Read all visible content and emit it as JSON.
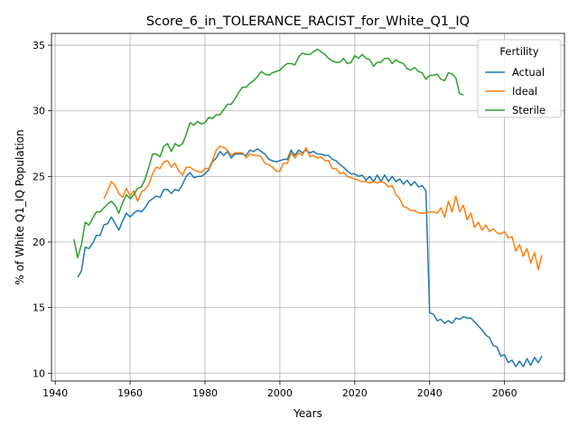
{
  "chart_data": {
    "type": "line",
    "title": "Score_6_in_TOLERANCE_RACIST_for_White_Q1_IQ",
    "xlabel": "Years",
    "ylabel": "% of White Q1_IQ Population",
    "xlim": [
      1939,
      2076
    ],
    "ylim": [
      9.4,
      35.9
    ],
    "xticks": [
      1940,
      1960,
      1980,
      2000,
      2020,
      2040,
      2060
    ],
    "yticks": [
      10,
      15,
      20,
      25,
      30,
      35
    ],
    "grid": true,
    "legend": {
      "title": "Fertility",
      "placement": "top-right"
    },
    "series": [
      {
        "name": "Actual",
        "color": "#1f77b4",
        "x": [
          1946,
          1947,
          1948,
          1949,
          1950,
          1951,
          1952,
          1953,
          1954,
          1955,
          1956,
          1957,
          1958,
          1959,
          1960,
          1961,
          1962,
          1963,
          1964,
          1965,
          1966,
          1967,
          1968,
          1969,
          1970,
          1971,
          1972,
          1973,
          1974,
          1975,
          1976,
          1977,
          1978,
          1979,
          1980,
          1981,
          1982,
          1983,
          1984,
          1985,
          1986,
          1987,
          1988,
          1989,
          1990,
          1991,
          1992,
          1993,
          1994,
          1995,
          1996,
          1997,
          1998,
          1999,
          2000,
          2001,
          2002,
          2003,
          2004,
          2005,
          2006,
          2007,
          2008,
          2009,
          2010,
          2011,
          2012,
          2013,
          2014,
          2015,
          2016,
          2017,
          2018,
          2019,
          2020,
          2021,
          2022,
          2023,
          2024,
          2025,
          2026,
          2027,
          2028,
          2029,
          2030,
          2031,
          2032,
          2033,
          2034,
          2035,
          2036,
          2037,
          2038,
          2039,
          2040,
          2041,
          2042,
          2043,
          2044,
          2045,
          2046,
          2047,
          2048,
          2049,
          2050,
          2051,
          2052,
          2053,
          2054,
          2055,
          2056,
          2057,
          2058,
          2059,
          2060,
          2061,
          2062,
          2063,
          2064,
          2065,
          2066,
          2067,
          2068,
          2069,
          2070
        ],
        "values": [
          17.3,
          17.8,
          19.6,
          19.5,
          19.9,
          20.5,
          20.5,
          21.3,
          21.4,
          21.9,
          21.4,
          20.9,
          21.6,
          22.2,
          21.9,
          22.2,
          22.4,
          22.3,
          22.6,
          23.1,
          23.3,
          23.5,
          23.4,
          24.0,
          24.0,
          23.7,
          24.0,
          23.9,
          24.4,
          25.0,
          25.3,
          24.9,
          25.0,
          25.0,
          25.2,
          25.5,
          26.1,
          26.4,
          26.9,
          26.6,
          26.9,
          26.4,
          26.7,
          26.7,
          26.7,
          26.6,
          27.0,
          26.9,
          27.1,
          26.9,
          26.7,
          26.3,
          26.2,
          26.1,
          26.2,
          26.3,
          26.3,
          27.0,
          26.6,
          27.0,
          26.8,
          27.0,
          26.8,
          26.9,
          26.7,
          26.7,
          26.6,
          26.6,
          26.3,
          26.2,
          25.9,
          25.7,
          25.4,
          25.2,
          25.2,
          25.0,
          25.1,
          24.7,
          25.0,
          24.6,
          25.1,
          24.6,
          25.1,
          24.6,
          25.0,
          24.6,
          24.8,
          24.4,
          24.7,
          24.3,
          24.6,
          24.2,
          24.3,
          23.9,
          14.6,
          14.5,
          14.0,
          14.1,
          13.8,
          14.0,
          13.8,
          14.2,
          14.1,
          14.3,
          14.2,
          14.2,
          13.9,
          13.6,
          13.3,
          12.9,
          12.7,
          12.1,
          12.0,
          11.3,
          11.4,
          10.8,
          11.0,
          10.5,
          10.9,
          10.5,
          11.1,
          10.6,
          11.2,
          10.8,
          11.3
        ]
      },
      {
        "name": "Ideal",
        "color": "#ff7f0e",
        "x": [
          1953,
          1954,
          1955,
          1956,
          1957,
          1958,
          1959,
          1960,
          1961,
          1962,
          1963,
          1964,
          1965,
          1966,
          1967,
          1968,
          1969,
          1970,
          1971,
          1972,
          1973,
          1974,
          1975,
          1976,
          1977,
          1978,
          1979,
          1980,
          1981,
          1982,
          1983,
          1984,
          1985,
          1986,
          1987,
          1988,
          1989,
          1990,
          1991,
          1992,
          1993,
          1994,
          1995,
          1996,
          1997,
          1998,
          1999,
          2000,
          2001,
          2002,
          2003,
          2004,
          2005,
          2006,
          2007,
          2008,
          2009,
          2010,
          2011,
          2012,
          2013,
          2014,
          2015,
          2016,
          2017,
          2018,
          2019,
          2020,
          2021,
          2022,
          2023,
          2024,
          2025,
          2026,
          2027,
          2028,
          2029,
          2030,
          2031,
          2032,
          2033,
          2034,
          2035,
          2036,
          2037,
          2038,
          2039,
          2040,
          2041,
          2042,
          2043,
          2044,
          2045,
          2046,
          2047,
          2048,
          2049,
          2050,
          2051,
          2052,
          2053,
          2054,
          2055,
          2056,
          2057,
          2058,
          2059,
          2060,
          2061,
          2062,
          2063,
          2064,
          2065,
          2066,
          2067,
          2068,
          2069,
          2070
        ],
        "values": [
          23.3,
          23.9,
          24.6,
          24.3,
          23.7,
          23.4,
          24.1,
          23.5,
          23.9,
          23.1,
          23.8,
          24.0,
          24.4,
          25.2,
          25.7,
          25.6,
          26.1,
          26.2,
          25.7,
          26.0,
          25.4,
          25.1,
          25.7,
          25.7,
          25.5,
          25.4,
          25.3,
          25.6,
          25.6,
          26.2,
          27.0,
          27.3,
          27.2,
          27.0,
          26.6,
          26.8,
          26.8,
          26.8,
          26.4,
          26.7,
          26.6,
          26.6,
          26.5,
          26.0,
          25.9,
          25.7,
          25.4,
          25.4,
          26.0,
          26.0,
          26.8,
          26.4,
          26.8,
          26.6,
          27.2,
          26.5,
          26.6,
          26.4,
          26.5,
          26.2,
          26.2,
          25.6,
          25.6,
          25.2,
          25.3,
          25.0,
          24.9,
          24.8,
          24.7,
          24.6,
          24.6,
          24.5,
          24.6,
          24.5,
          24.6,
          24.5,
          24.2,
          24.3,
          23.6,
          23.3,
          22.7,
          22.6,
          22.4,
          22.4,
          22.2,
          22.2,
          22.2,
          22.3,
          22.3,
          22.2,
          22.6,
          21.9,
          23.1,
          22.3,
          23.5,
          22.3,
          22.8,
          21.7,
          22.2,
          21.1,
          21.5,
          20.9,
          21.3,
          20.8,
          21.0,
          20.7,
          20.6,
          20.8,
          20.3,
          20.4,
          19.3,
          19.8,
          18.9,
          19.5,
          18.4,
          19.2,
          17.9,
          19.0
        ]
      },
      {
        "name": "Sterile",
        "color": "#2ca02c",
        "x": [
          1945,
          1946,
          1947,
          1948,
          1949,
          1950,
          1951,
          1952,
          1953,
          1954,
          1955,
          1956,
          1957,
          1958,
          1959,
          1960,
          1961,
          1962,
          1963,
          1964,
          1965,
          1966,
          1967,
          1968,
          1969,
          1970,
          1971,
          1972,
          1973,
          1974,
          1975,
          1976,
          1977,
          1978,
          1979,
          1980,
          1981,
          1982,
          1983,
          1984,
          1985,
          1986,
          1987,
          1988,
          1989,
          1990,
          1991,
          1992,
          1993,
          1994,
          1995,
          1996,
          1997,
          1998,
          1999,
          2000,
          2001,
          2002,
          2003,
          2004,
          2005,
          2006,
          2007,
          2008,
          2009,
          2010,
          2011,
          2012,
          2013,
          2014,
          2015,
          2016,
          2017,
          2018,
          2019,
          2020,
          2021,
          2022,
          2023,
          2024,
          2025,
          2026,
          2027,
          2028,
          2029,
          2030,
          2031,
          2032,
          2033,
          2034,
          2035,
          2036,
          2037,
          2038,
          2039,
          2040,
          2041,
          2042,
          2043,
          2044,
          2045,
          2046,
          2047,
          2048,
          2049
        ],
        "values": [
          20.2,
          18.8,
          19.8,
          21.5,
          21.3,
          21.8,
          22.3,
          22.3,
          22.6,
          22.9,
          23.1,
          22.8,
          22.2,
          23.0,
          23.6,
          23.3,
          23.6,
          24.1,
          24.2,
          24.8,
          25.7,
          26.7,
          26.7,
          26.5,
          27.3,
          27.5,
          26.9,
          27.5,
          27.3,
          27.5,
          28.2,
          29.1,
          28.9,
          29.2,
          29.0,
          29.1,
          29.5,
          29.4,
          29.7,
          29.7,
          30.1,
          30.5,
          30.5,
          30.9,
          31.4,
          31.8,
          31.8,
          32.1,
          32.3,
          32.6,
          33.0,
          32.8,
          32.7,
          32.9,
          33.0,
          33.1,
          33.4,
          33.6,
          33.6,
          33.5,
          34.1,
          34.4,
          34.3,
          34.3,
          34.5,
          34.7,
          34.5,
          34.3,
          34.0,
          33.8,
          33.7,
          33.7,
          34.0,
          33.6,
          33.7,
          34.2,
          34.0,
          34.3,
          34.0,
          33.9,
          33.4,
          33.7,
          33.7,
          34.0,
          34.0,
          33.6,
          33.9,
          33.7,
          33.6,
          33.2,
          33.1,
          33.3,
          33.0,
          32.9,
          32.4,
          32.7,
          32.7,
          32.8,
          32.4,
          32.3,
          32.9,
          32.8,
          32.5,
          31.3,
          31.2
        ]
      }
    ]
  }
}
